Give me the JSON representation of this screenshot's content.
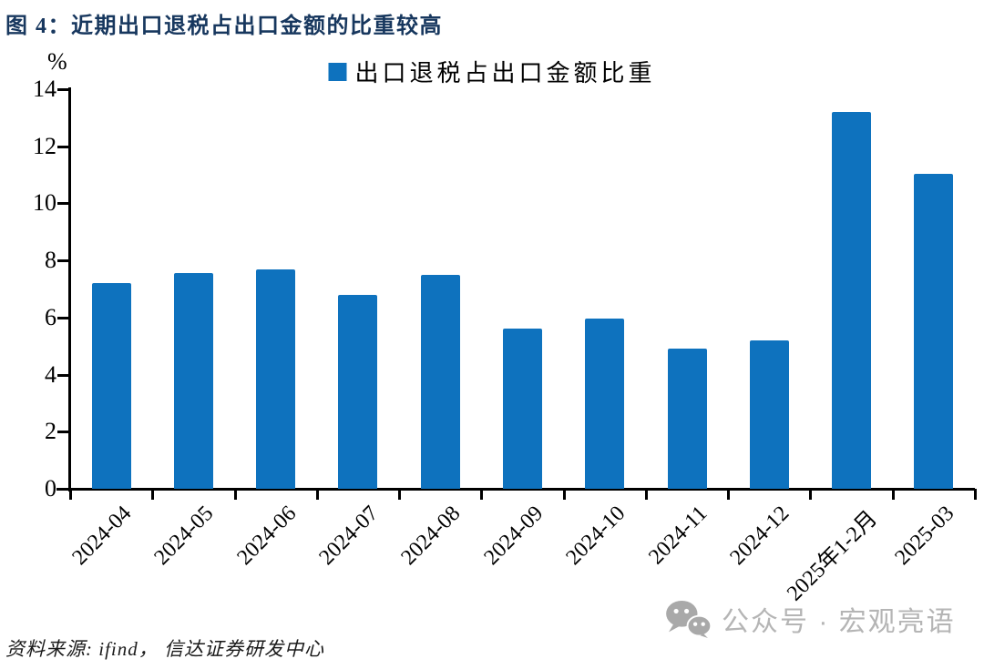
{
  "figure": {
    "title": "图 4：近期出口退税占出口金额的比重较高",
    "source_note": "资料来源: ifind， 信达证券研发中心",
    "watermark_text": "公众号 · 宏观亮语"
  },
  "chart_data": {
    "type": "bar",
    "title": "图 4：近期出口退税占出口金额的比重较高",
    "legend_label": "出口退税占出口金额比重",
    "unit_label": "%",
    "categories": [
      "2024-04",
      "2024-05",
      "2024-06",
      "2024-07",
      "2024-08",
      "2024-09",
      "2024-10",
      "2024-11",
      "2024-12",
      "2025年1-2月",
      "2025-03"
    ],
    "values": [
      7.2,
      7.55,
      7.7,
      6.8,
      7.5,
      5.6,
      5.95,
      4.9,
      5.2,
      13.2,
      11.05
    ],
    "ylim": [
      0,
      14
    ],
    "yticks": [
      0,
      2,
      4,
      6,
      8,
      10,
      12,
      14
    ],
    "grid": false,
    "legend_position": "top-center",
    "bar_color": "#0e72be",
    "axis_color": "#000000"
  },
  "colors": {
    "title": "#17375e",
    "bar": "#0e72be",
    "watermark": "#b5b5b5",
    "source_text": "#1a1a1a"
  }
}
